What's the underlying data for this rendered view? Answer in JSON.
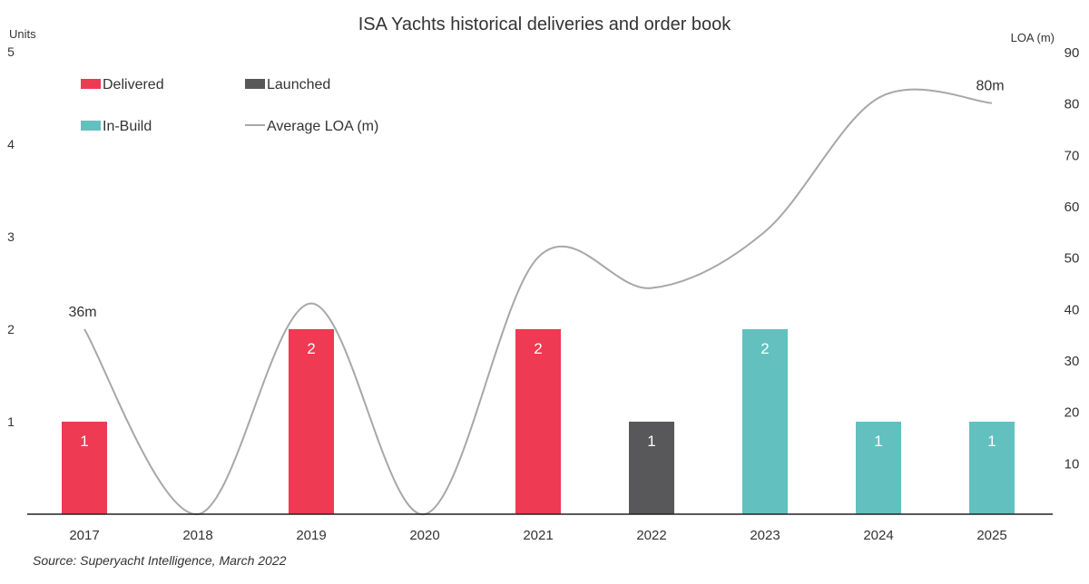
{
  "chart_data": {
    "type": "bar",
    "title": "ISA Yachts historical deliveries and order book",
    "ylabel_left": "Units",
    "ylabel_right": "LOA (m)",
    "categories": [
      "2017",
      "2018",
      "2019",
      "2020",
      "2021",
      "2022",
      "2023",
      "2024",
      "2025"
    ],
    "y_left_ticks": [
      "1",
      "2",
      "3",
      "4",
      "5"
    ],
    "y_right_ticks": [
      "10",
      "20",
      "30",
      "40",
      "50",
      "60",
      "70",
      "80",
      "90"
    ],
    "ylim_left": [
      0,
      5
    ],
    "ylim_right": [
      0,
      90
    ],
    "bars": [
      {
        "year": "2017",
        "value": 1,
        "status": "Delivered",
        "label": "1"
      },
      {
        "year": "2018",
        "value": 0,
        "status": "Delivered",
        "label": ""
      },
      {
        "year": "2019",
        "value": 2,
        "status": "Delivered",
        "label": "2"
      },
      {
        "year": "2020",
        "value": 0,
        "status": "Delivered",
        "label": ""
      },
      {
        "year": "2021",
        "value": 2,
        "status": "Delivered",
        "label": "2"
      },
      {
        "year": "2022",
        "value": 1,
        "status": "Launched",
        "label": "1"
      },
      {
        "year": "2023",
        "value": 2,
        "status": "In-Build",
        "label": "2"
      },
      {
        "year": "2024",
        "value": 1,
        "status": "In-Build",
        "label": "1"
      },
      {
        "year": "2025",
        "value": 1,
        "status": "In-Build",
        "label": "1"
      }
    ],
    "line_series": {
      "name": "Average LOA (m)",
      "values": [
        36,
        0,
        41,
        0,
        50,
        44,
        55,
        81,
        80
      ],
      "annotations": [
        {
          "index": 0,
          "text": "36m"
        },
        {
          "index": 8,
          "text": "80m"
        }
      ]
    },
    "legend": {
      "placement": "top-left",
      "items": [
        {
          "name": "Delivered",
          "kind": "bar",
          "color": "#ee3a52"
        },
        {
          "name": "Launched",
          "kind": "bar",
          "color": "#58585a"
        },
        {
          "name": "In-Build",
          "kind": "bar",
          "color": "#62c1bf"
        },
        {
          "name": "Average LOA (m)",
          "kind": "line",
          "color": "#a7a7a7"
        }
      ]
    },
    "colors": {
      "Delivered": "#ee3a52",
      "Launched": "#58585a",
      "In-Build": "#62c1bf",
      "line": "#a7a7a7"
    },
    "source": "Source: Superyacht Intelligence, March 2022"
  }
}
